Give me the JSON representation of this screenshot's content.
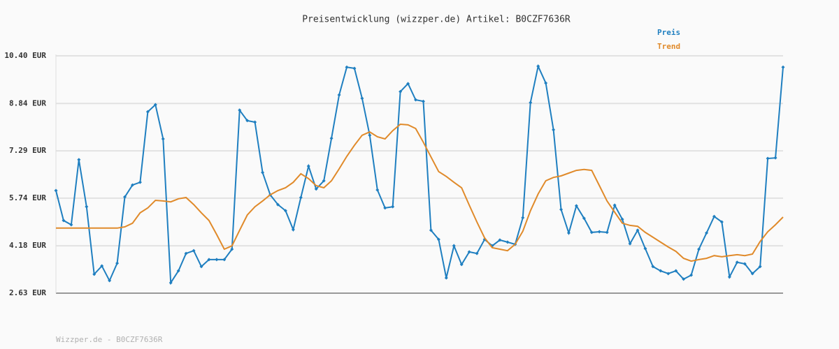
{
  "chart_data": {
    "type": "line",
    "title": "Preisentwicklung (wizzper.de) Artikel: B0CZF7636R",
    "footer": "Wizzper.de - B0CZF7636R",
    "ylim": [
      2.63,
      10.4
    ],
    "yticks": [
      {
        "value": 2.63,
        "label": "2.63 EUR"
      },
      {
        "value": 4.18,
        "label": "4.18 EUR"
      },
      {
        "value": 5.74,
        "label": "5.74 EUR"
      },
      {
        "value": 7.29,
        "label": "7.29 EUR"
      },
      {
        "value": 8.84,
        "label": "8.84 EUR"
      },
      {
        "value": 10.4,
        "label": "10.40 EUR"
      }
    ],
    "grid": true,
    "legend": "top-right",
    "series": [
      {
        "name": "Preis",
        "color": "#1f7fc0",
        "markers": true,
        "values": [
          5.99,
          5.01,
          4.87,
          7.0,
          5.46,
          3.25,
          3.52,
          3.04,
          3.61,
          5.78,
          6.17,
          6.26,
          8.57,
          8.8,
          7.68,
          2.97,
          3.36,
          3.93,
          4.02,
          3.5,
          3.73,
          3.73,
          3.73,
          4.07,
          8.62,
          8.28,
          8.23,
          6.58,
          5.85,
          5.53,
          5.33,
          4.71,
          5.76,
          6.79,
          6.04,
          6.31,
          7.7,
          9.12,
          10.03,
          9.99,
          9.01,
          7.8,
          6.01,
          5.42,
          5.46,
          9.23,
          9.49,
          8.96,
          8.91,
          4.69,
          4.39,
          3.13,
          4.18,
          3.57,
          3.98,
          3.93,
          4.39,
          4.18,
          4.37,
          4.3,
          4.23,
          5.1,
          8.87,
          10.06,
          9.51,
          7.98,
          5.37,
          4.6,
          5.49,
          5.08,
          4.62,
          4.64,
          4.62,
          5.51,
          5.05,
          4.25,
          4.69,
          4.09,
          3.5,
          3.36,
          3.27,
          3.36,
          3.09,
          3.22,
          4.07,
          4.6,
          5.14,
          4.96,
          3.16,
          3.64,
          3.59,
          3.27,
          3.5,
          7.04,
          7.06,
          10.03
        ]
      },
      {
        "name": "Trend",
        "color": "#e08a2a",
        "markers": false,
        "values": [
          4.76,
          4.76,
          4.76,
          4.76,
          4.76,
          4.76,
          4.76,
          4.76,
          4.76,
          4.8,
          4.92,
          5.26,
          5.42,
          5.67,
          5.65,
          5.62,
          5.72,
          5.76,
          5.53,
          5.26,
          5.01,
          4.55,
          4.07,
          4.18,
          4.69,
          5.19,
          5.46,
          5.65,
          5.85,
          5.99,
          6.08,
          6.26,
          6.54,
          6.38,
          6.15,
          6.08,
          6.31,
          6.7,
          7.11,
          7.47,
          7.8,
          7.91,
          7.75,
          7.68,
          7.95,
          8.16,
          8.14,
          8.02,
          7.57,
          7.09,
          6.61,
          6.45,
          6.26,
          6.08,
          5.51,
          4.96,
          4.44,
          4.12,
          4.07,
          4.02,
          4.23,
          4.66,
          5.33,
          5.88,
          6.31,
          6.42,
          6.47,
          6.56,
          6.65,
          6.68,
          6.65,
          6.15,
          5.65,
          5.28,
          4.92,
          4.85,
          4.82,
          4.62,
          4.46,
          4.3,
          4.14,
          4.0,
          3.77,
          3.68,
          3.73,
          3.77,
          3.86,
          3.82,
          3.86,
          3.89,
          3.86,
          3.91,
          4.32,
          4.64,
          4.87,
          5.12
        ]
      }
    ]
  }
}
